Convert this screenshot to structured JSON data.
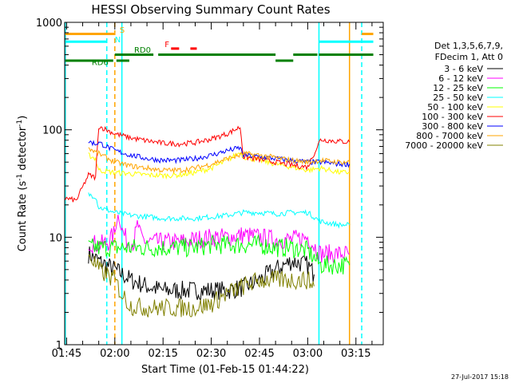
{
  "chart_data": {
    "type": "line",
    "title": "HESSI Observing Summary Count Rates",
    "xlabel": "Start Time (01-Feb-15 01:44:22)",
    "ylabel": "Count Rate (s-1 detector-1)",
    "ylabel_parts": {
      "pre": "Count Rate (s",
      "sup1": "-1",
      "mid": " detector",
      "sup2": "-1",
      "post": ")"
    },
    "yscale": "log",
    "ylim": [
      1,
      1000
    ],
    "xlim_minutes": [
      104.4,
      203.5
    ],
    "x_ticks": [
      {
        "label": "01:45",
        "m": 105
      },
      {
        "label": "02:00",
        "m": 120
      },
      {
        "label": "02:15",
        "m": 135
      },
      {
        "label": "02:30",
        "m": 150
      },
      {
        "label": "02:45",
        "m": 165
      },
      {
        "label": "03:00",
        "m": 180
      },
      {
        "label": "03:15",
        "m": 195
      }
    ],
    "y_ticks": [
      {
        "label": "1",
        "v": 1
      },
      {
        "label": "10",
        "v": 10
      },
      {
        "label": "100",
        "v": 100
      },
      {
        "label": "1000",
        "v": 1000
      }
    ],
    "legend_header": [
      "Det 1,3,5,6,7,9,",
      "FDecim 1, Att 0"
    ],
    "series": [
      {
        "name": "3 - 6 keV",
        "color": "#000000",
        "points": [
          [
            111.8,
            7
          ],
          [
            115,
            6
          ],
          [
            120,
            5
          ],
          [
            125,
            4
          ],
          [
            130,
            3.5
          ],
          [
            135,
            3.2
          ],
          [
            140,
            3.2
          ],
          [
            145,
            3.2
          ],
          [
            150,
            3.2
          ],
          [
            155,
            3.2
          ],
          [
            160,
            3.4
          ],
          [
            165,
            4
          ],
          [
            170,
            5
          ],
          [
            175,
            6
          ],
          [
            180,
            5.5
          ],
          [
            182,
            4.5
          ]
        ]
      },
      {
        "name": "6 - 12 keV",
        "color": "#ff00ff",
        "points": [
          [
            111.8,
            9
          ],
          [
            115,
            8.5
          ],
          [
            118,
            9
          ],
          [
            120,
            11
          ],
          [
            121,
            16
          ],
          [
            122,
            12
          ],
          [
            124,
            9
          ],
          [
            126,
            9
          ],
          [
            127,
            14
          ],
          [
            128,
            10
          ],
          [
            130,
            9
          ],
          [
            135,
            9
          ],
          [
            140,
            9
          ],
          [
            145,
            9.5
          ],
          [
            150,
            10
          ],
          [
            155,
            10
          ],
          [
            160,
            10.5
          ],
          [
            165,
            10
          ],
          [
            170,
            9.5
          ],
          [
            175,
            9.5
          ],
          [
            180,
            10
          ],
          [
            184,
            7
          ],
          [
            190,
            7
          ],
          [
            193,
            7
          ]
        ]
      },
      {
        "name": "12 - 25 keV",
        "color": "#00ff00",
        "points": [
          [
            111.8,
            8
          ],
          [
            115,
            8
          ],
          [
            120,
            8
          ],
          [
            125,
            8
          ],
          [
            130,
            8
          ],
          [
            135,
            8
          ],
          [
            140,
            8
          ],
          [
            145,
            8
          ],
          [
            150,
            8.5
          ],
          [
            155,
            8.5
          ],
          [
            160,
            8.5
          ],
          [
            165,
            8.5
          ],
          [
            170,
            8
          ],
          [
            175,
            8
          ],
          [
            180,
            7.5
          ],
          [
            184,
            5.5
          ],
          [
            190,
            5.5
          ],
          [
            193,
            5.5
          ]
        ]
      },
      {
        "name": "25 - 50 keV",
        "color": "#00ffff",
        "points": [
          [
            111.8,
            25
          ],
          [
            114,
            24
          ],
          [
            115,
            19
          ],
          [
            120,
            17
          ],
          [
            125,
            16
          ],
          [
            130,
            15.5
          ],
          [
            135,
            15
          ],
          [
            140,
            15
          ],
          [
            145,
            15
          ],
          [
            150,
            15.5
          ],
          [
            155,
            16
          ],
          [
            160,
            17
          ],
          [
            165,
            17
          ],
          [
            170,
            16.5
          ],
          [
            175,
            17
          ],
          [
            180,
            17
          ],
          [
            184,
            14
          ],
          [
            190,
            13
          ],
          [
            193,
            13
          ]
        ]
      },
      {
        "name": "50 - 100 keV",
        "color": "#ffff00",
        "points": [
          [
            111.8,
            58
          ],
          [
            114,
            54
          ],
          [
            115,
            42
          ],
          [
            120,
            40
          ],
          [
            125,
            39
          ],
          [
            130,
            38
          ],
          [
            135,
            37.5
          ],
          [
            140,
            38
          ],
          [
            145,
            40
          ],
          [
            150,
            44
          ],
          [
            155,
            52
          ],
          [
            159,
            62
          ],
          [
            160,
            56
          ],
          [
            165,
            52
          ],
          [
            170,
            48
          ],
          [
            175,
            45
          ],
          [
            180,
            42
          ],
          [
            184,
            44
          ],
          [
            190,
            40
          ],
          [
            193,
            40
          ]
        ]
      },
      {
        "name": "100 - 300 keV",
        "color": "#ff0000",
        "points": [
          [
            104.6,
            23
          ],
          [
            108,
            22
          ],
          [
            111.8,
            38
          ],
          [
            114,
            36
          ],
          [
            115,
            108
          ],
          [
            120,
            92
          ],
          [
            125,
            84
          ],
          [
            130,
            79
          ],
          [
            135,
            75
          ],
          [
            140,
            74
          ],
          [
            145,
            76
          ],
          [
            150,
            82
          ],
          [
            155,
            92
          ],
          [
            159,
            106
          ],
          [
            160,
            56
          ],
          [
            165,
            53
          ],
          [
            170,
            50
          ],
          [
            175,
            47
          ],
          [
            180,
            45
          ],
          [
            184,
            81
          ],
          [
            190,
            78
          ],
          [
            193,
            77
          ]
        ]
      },
      {
        "name": "300 - 800 keV",
        "color": "#0000ff",
        "points": [
          [
            111.8,
            78
          ],
          [
            114,
            74
          ],
          [
            115,
            76
          ],
          [
            120,
            64
          ],
          [
            125,
            58
          ],
          [
            130,
            54
          ],
          [
            135,
            52
          ],
          [
            140,
            52
          ],
          [
            145,
            54
          ],
          [
            150,
            58
          ],
          [
            155,
            64
          ],
          [
            159,
            68
          ],
          [
            160,
            58
          ],
          [
            165,
            56
          ],
          [
            170,
            54
          ],
          [
            175,
            52
          ],
          [
            180,
            50
          ],
          [
            184,
            50
          ],
          [
            190,
            48
          ],
          [
            193,
            48
          ]
        ]
      },
      {
        "name": "800 - 7000 keV",
        "color": "#ffa500",
        "points": [
          [
            111.8,
            68
          ],
          [
            114,
            62
          ],
          [
            115,
            60
          ],
          [
            120,
            50
          ],
          [
            125,
            46
          ],
          [
            130,
            44
          ],
          [
            135,
            42
          ],
          [
            140,
            42
          ],
          [
            145,
            44
          ],
          [
            150,
            48
          ],
          [
            155,
            54
          ],
          [
            159,
            58
          ],
          [
            160,
            60
          ],
          [
            165,
            58
          ],
          [
            170,
            55
          ],
          [
            175,
            52
          ],
          [
            180,
            50
          ],
          [
            184,
            52
          ],
          [
            190,
            50
          ],
          [
            193,
            50
          ]
        ]
      },
      {
        "name": "7000 - 20000 keV",
        "color": "#808000",
        "points": [
          [
            111.8,
            7
          ],
          [
            115,
            5
          ],
          [
            120,
            4
          ],
          [
            122,
            3
          ],
          [
            125,
            2.3
          ],
          [
            130,
            2.2
          ],
          [
            135,
            2.2
          ],
          [
            140,
            2.2
          ],
          [
            145,
            2.2
          ],
          [
            150,
            2.4
          ],
          [
            155,
            3
          ],
          [
            160,
            3.5
          ],
          [
            165,
            4
          ],
          [
            170,
            4
          ],
          [
            175,
            4
          ],
          [
            180,
            4
          ],
          [
            182,
            3.5
          ]
        ]
      }
    ],
    "vertical_lines": [
      {
        "m": 104.6,
        "color": "#00ffff",
        "dashed": false
      },
      {
        "m": 117.5,
        "color": "#00ffff",
        "dashed": true
      },
      {
        "m": 120.0,
        "color": "#ffa500",
        "dashed": true
      },
      {
        "m": 122.2,
        "color": "#00ffff",
        "dashed": false
      },
      {
        "m": 183.5,
        "color": "#00ffff",
        "dashed": false
      },
      {
        "m": 193.0,
        "color": "#ffa500",
        "dashed": false
      },
      {
        "m": 196.8,
        "color": "#00ffff",
        "dashed": true
      }
    ],
    "status_bars": [
      {
        "label": "S",
        "color": "#ffa500",
        "value": 780,
        "segments": [
          [
            104.6,
            120.0
          ],
          [
            196.8,
            200.4
          ]
        ]
      },
      {
        "label": "N",
        "color": "#00ffff",
        "value": 660,
        "segments": [
          [
            104.6,
            117.5
          ],
          [
            183.5,
            200.4
          ]
        ]
      },
      {
        "label": "F",
        "color": "#ff0000",
        "value": 570,
        "segments": [
          [
            137.5,
            140.0
          ],
          [
            143.5,
            145.5
          ]
        ]
      },
      {
        "label": "RD0",
        "color": "#008000",
        "value": 500,
        "segments": [
          [
            120.0,
            132.0
          ],
          [
            133.5,
            170.0
          ],
          [
            175.5,
            183.0
          ],
          [
            183.5,
            200.4
          ]
        ]
      },
      {
        "label": "RD6",
        "color": "#008000",
        "value": 440,
        "segments": [
          [
            104.6,
            119.5
          ],
          [
            120.5,
            124.5
          ],
          [
            170.0,
            175.5
          ]
        ]
      }
    ],
    "status_label_positions": [
      {
        "label": "S",
        "m": 121.5,
        "v": 800
      },
      {
        "label": "N",
        "m": 120.0,
        "v": 650
      },
      {
        "label": "F",
        "m": 135.5,
        "v": 590
      },
      {
        "label": "RD0",
        "m": 126.0,
        "v": 520
      },
      {
        "label": "RD6",
        "m": 112.8,
        "v": 400
      }
    ]
  },
  "timestamp": "27-Jul-2017 15:18"
}
